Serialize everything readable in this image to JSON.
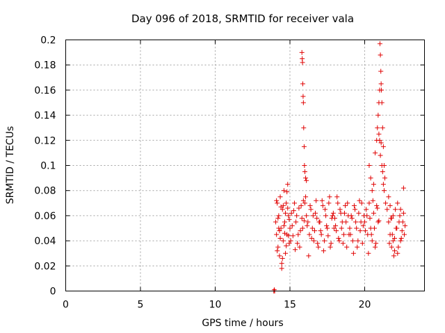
{
  "chart_data": {
    "type": "scatter",
    "title": "Day 096 of 2018, SRMTID for receiver vala",
    "xlabel": "GPS time / hours",
    "ylabel": "SRMTID / TECUs",
    "xlim": [
      0,
      24
    ],
    "ylim": [
      0,
      0.2
    ],
    "xticks": [
      0,
      5,
      10,
      15,
      20
    ],
    "xtick_labels": [
      "0",
      "5",
      "10",
      "15",
      "20"
    ],
    "yticks": [
      0,
      0.02,
      0.04,
      0.06,
      0.08,
      0.1,
      0.12,
      0.14,
      0.16,
      0.18,
      0.2
    ],
    "ytick_labels": [
      "0",
      "0.02",
      "0.04",
      "0.06",
      "0.08",
      "0.1",
      "0.12",
      "0.14",
      "0.16",
      "0.18",
      "0.2"
    ],
    "grid": true,
    "marker": "+",
    "marker_color": "#e00000",
    "series": [
      {
        "name": "SRMTID",
        "x": [
          13.92,
          13.95,
          13.98,
          14.05,
          14.1,
          14.15,
          14.2,
          14.25,
          14.3,
          14.35,
          14.4,
          14.45,
          14.5,
          14.55,
          14.6,
          14.65,
          14.7,
          14.75,
          14.8,
          14.85,
          14.9,
          14.95,
          14.1,
          14.2,
          14.3,
          14.4,
          14.5,
          14.6,
          14.7,
          14.8,
          14.9,
          14.15,
          14.35,
          14.55,
          14.75,
          14.95,
          14.25,
          14.45,
          14.65,
          14.85,
          15.0,
          15.1,
          15.2,
          15.3,
          15.4,
          15.5,
          15.6,
          15.7,
          15.8,
          15.9,
          15.05,
          15.15,
          15.25,
          15.35,
          15.45,
          15.55,
          15.65,
          15.75,
          15.85,
          15.95,
          15.8,
          15.82,
          15.84,
          15.86,
          15.88,
          15.9,
          15.92,
          15.95,
          15.97,
          16.0,
          16.05,
          16.1,
          16.0,
          16.1,
          16.2,
          16.3,
          16.4,
          16.5,
          16.6,
          16.7,
          16.8,
          16.9,
          16.05,
          16.15,
          16.25,
          16.35,
          16.45,
          16.55,
          16.65,
          16.75,
          16.85,
          16.95,
          17.0,
          17.1,
          17.2,
          17.3,
          17.4,
          17.5,
          17.6,
          17.7,
          17.8,
          17.9,
          17.05,
          17.15,
          17.25,
          17.35,
          17.45,
          17.55,
          17.65,
          17.75,
          17.85,
          17.95,
          18.0,
          18.1,
          18.2,
          18.3,
          18.4,
          18.5,
          18.6,
          18.7,
          18.8,
          18.9,
          18.05,
          18.15,
          18.25,
          18.35,
          18.45,
          18.55,
          18.65,
          18.75,
          18.85,
          18.95,
          19.0,
          19.1,
          19.2,
          19.3,
          19.4,
          19.5,
          19.6,
          19.7,
          19.8,
          19.9,
          19.05,
          19.15,
          19.25,
          19.35,
          19.45,
          19.55,
          19.65,
          19.75,
          19.85,
          19.95,
          20.0,
          20.1,
          20.2,
          20.3,
          20.4,
          20.5,
          20.6,
          20.7,
          20.8,
          20.9,
          20.05,
          20.15,
          20.25,
          20.35,
          20.45,
          20.55,
          20.65,
          20.75,
          20.85,
          20.95,
          20.3,
          20.4,
          20.5,
          20.6,
          20.7,
          20.8,
          20.85,
          20.9,
          20.95,
          21.0,
          21.02,
          21.05,
          21.08,
          21.1,
          21.12,
          21.15,
          21.2,
          21.25,
          21.3,
          21.35,
          20.95,
          21.0,
          21.05,
          21.1,
          21.15,
          21.2,
          21.25,
          21.3,
          21.4,
          21.5,
          21.6,
          21.7,
          21.8,
          21.9,
          22.0,
          22.1,
          22.2,
          22.3,
          22.4,
          22.5,
          22.6,
          22.7,
          21.65,
          21.75,
          21.85,
          21.95,
          22.05,
          22.15,
          22.25,
          22.35,
          22.45,
          22.55,
          22.65,
          21.6,
          21.7,
          21.8,
          21.9,
          22.0,
          22.2,
          22.4,
          22.6
        ],
        "y": [
          0.0,
          0.001,
          0.0,
          0.055,
          0.045,
          0.07,
          0.035,
          0.06,
          0.028,
          0.075,
          0.05,
          0.022,
          0.065,
          0.04,
          0.08,
          0.055,
          0.03,
          0.07,
          0.045,
          0.085,
          0.06,
          0.038,
          0.072,
          0.058,
          0.048,
          0.067,
          0.026,
          0.052,
          0.062,
          0.079,
          0.044,
          0.032,
          0.042,
          0.068,
          0.036,
          0.057,
          0.05,
          0.018,
          0.046,
          0.066,
          0.05,
          0.062,
          0.044,
          0.07,
          0.055,
          0.038,
          0.066,
          0.048,
          0.058,
          0.072,
          0.04,
          0.052,
          0.064,
          0.033,
          0.06,
          0.045,
          0.035,
          0.068,
          0.05,
          0.056,
          0.19,
          0.185,
          0.182,
          0.165,
          0.155,
          0.15,
          0.13,
          0.115,
          0.1,
          0.095,
          0.09,
          0.088,
          0.07,
          0.06,
          0.055,
          0.045,
          0.065,
          0.05,
          0.04,
          0.062,
          0.058,
          0.035,
          0.075,
          0.052,
          0.028,
          0.068,
          0.042,
          0.06,
          0.048,
          0.072,
          0.038,
          0.055,
          0.055,
          0.045,
          0.068,
          0.04,
          0.06,
          0.05,
          0.07,
          0.035,
          0.058,
          0.062,
          0.048,
          0.072,
          0.032,
          0.065,
          0.052,
          0.044,
          0.075,
          0.038,
          0.06,
          0.05,
          0.058,
          0.048,
          0.07,
          0.04,
          0.062,
          0.055,
          0.045,
          0.068,
          0.035,
          0.06,
          0.052,
          0.075,
          0.042,
          0.065,
          0.05,
          0.038,
          0.062,
          0.055,
          0.07,
          0.045,
          0.05,
          0.06,
          0.04,
          0.068,
          0.055,
          0.035,
          0.062,
          0.048,
          0.07,
          0.052,
          0.045,
          0.058,
          0.03,
          0.065,
          0.05,
          0.04,
          0.072,
          0.055,
          0.038,
          0.06,
          0.055,
          0.065,
          0.045,
          0.07,
          0.05,
          0.04,
          0.062,
          0.035,
          0.068,
          0.055,
          0.048,
          0.06,
          0.03,
          0.058,
          0.045,
          0.072,
          0.05,
          0.038,
          0.066,
          0.056,
          0.1,
          0.09,
          0.08,
          0.085,
          0.11,
          0.12,
          0.13,
          0.14,
          0.15,
          0.16,
          0.197,
          0.188,
          0.175,
          0.165,
          0.16,
          0.15,
          0.13,
          0.115,
          0.1,
          0.09,
          0.125,
          0.12,
          0.108,
          0.118,
          0.1,
          0.095,
          0.085,
          0.08,
          0.07,
          0.065,
          0.055,
          0.045,
          0.035,
          0.06,
          0.042,
          0.05,
          0.03,
          0.055,
          0.04,
          0.048,
          0.062,
          0.052,
          0.038,
          0.058,
          0.045,
          0.028,
          0.065,
          0.05,
          0.035,
          0.06,
          0.042,
          0.055,
          0.045,
          0.075,
          0.068,
          0.058,
          0.04,
          0.032,
          0.07,
          0.065,
          0.082
        ]
      }
    ]
  }
}
